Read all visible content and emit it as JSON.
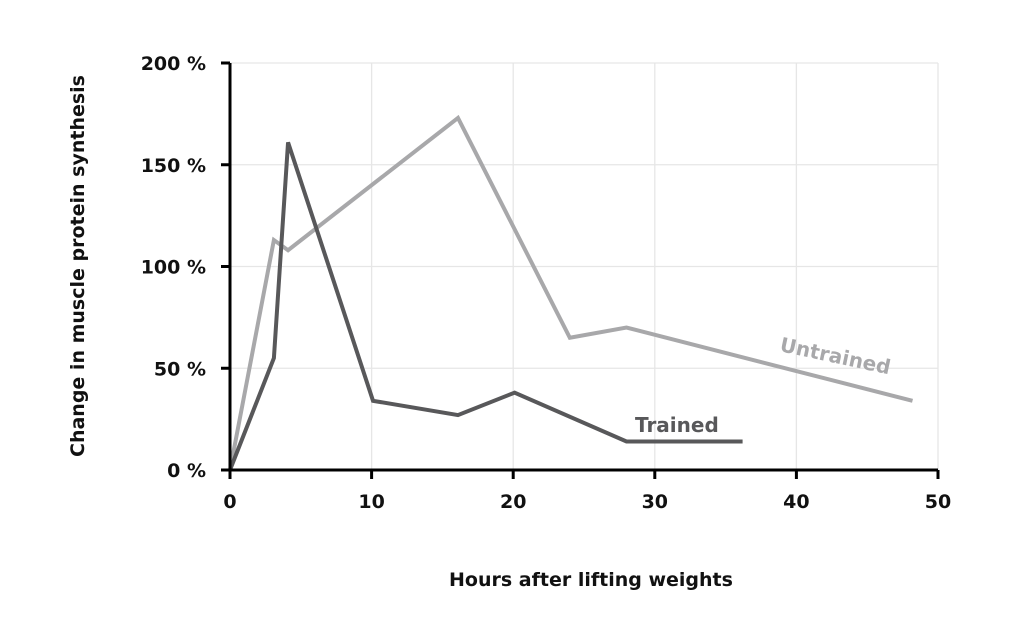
{
  "chart_data": {
    "type": "line",
    "title": "",
    "xlabel": "Hours after lifting weights",
    "ylabel": "Change in muscle protein synthesis",
    "xlim": [
      0,
      50
    ],
    "ylim": [
      0,
      200
    ],
    "x_ticks": [
      0,
      10,
      20,
      30,
      40,
      50
    ],
    "x_tick_labels": [
      "0",
      "10",
      "20",
      "30",
      "40",
      "50"
    ],
    "y_ticks": [
      0,
      50,
      100,
      150,
      200
    ],
    "y_tick_labels": [
      "0 %",
      "50 %",
      "100 %",
      "150 %",
      "200 %"
    ],
    "grid": true,
    "series": [
      {
        "name": "Untrained",
        "color": "#a8a8aa",
        "x": [
          0,
          3.1,
          4.1,
          16.1,
          24,
          28,
          48.2
        ],
        "y": [
          0,
          113,
          108,
          173,
          65,
          70,
          34
        ]
      },
      {
        "name": "Trained",
        "color": "#58585a",
        "x": [
          0,
          3.1,
          4.1,
          10.1,
          16.1,
          20.1,
          28,
          36.2
        ],
        "y": [
          0,
          55,
          161,
          34,
          27,
          38,
          14,
          14
        ]
      }
    ]
  }
}
